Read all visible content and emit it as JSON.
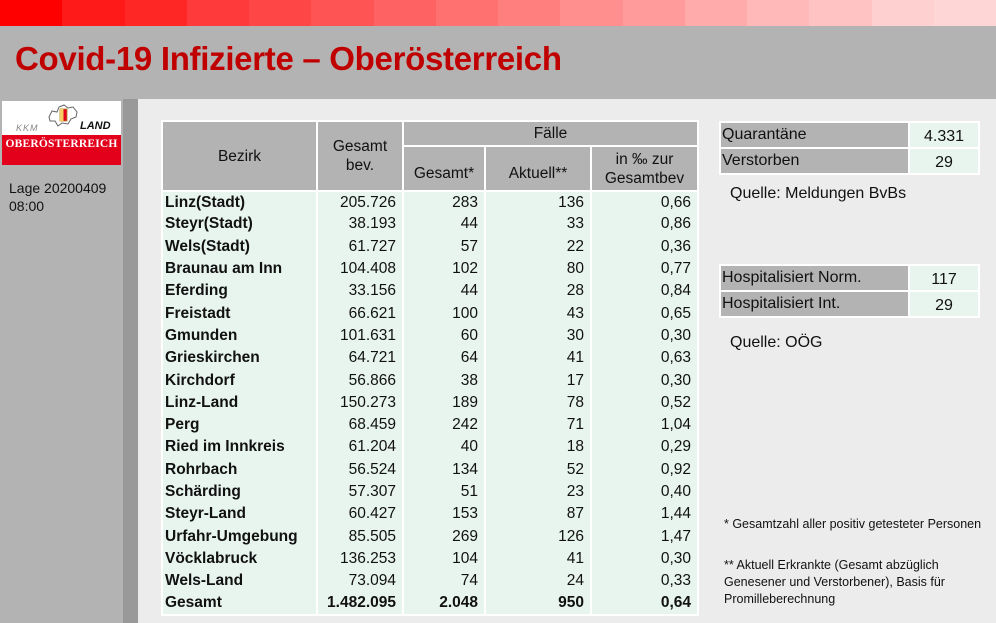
{
  "header": {
    "title": "Covid-19 Infizierte – Oberösterreich",
    "gradient_colors": [
      "#ff0000",
      "#ff1a1a",
      "#ff2626",
      "#ff3a3a",
      "#ff4646",
      "#ff5454",
      "#ff6262",
      "#ff7070",
      "#ff7e7e",
      "#ff8e8e",
      "#ff9b9b",
      "#ffabab",
      "#ffb9b9",
      "#ffc3c3",
      "#ffd0d0",
      "#ffd6d6"
    ]
  },
  "sidebar": {
    "logo": {
      "kkm": "KKM",
      "land": "LAND",
      "region": "OBERÖSTERREICH"
    },
    "lage_line1": "Lage 20200409",
    "lage_line2": "08:00"
  },
  "table": {
    "headers": {
      "bezirk": "Bezirk",
      "gesamt_bev_1": "Gesamt",
      "gesamt_bev_2": "bev.",
      "faelle": "Fälle",
      "gesamt": "Gesamt*",
      "aktuell": "Aktuell**",
      "promille_1": "in ‰ zur",
      "promille_2": "Gesamtbev"
    },
    "rows": [
      {
        "bezirk": "Linz(Stadt)",
        "bev": "205.726",
        "gesamt": "283",
        "aktuell": "136",
        "promille": "0,66"
      },
      {
        "bezirk": "Steyr(Stadt)",
        "bev": "38.193",
        "gesamt": "44",
        "aktuell": "33",
        "promille": "0,86"
      },
      {
        "bezirk": "Wels(Stadt)",
        "bev": "61.727",
        "gesamt": "57",
        "aktuell": "22",
        "promille": "0,36"
      },
      {
        "bezirk": "Braunau am Inn",
        "bev": "104.408",
        "gesamt": "102",
        "aktuell": "80",
        "promille": "0,77"
      },
      {
        "bezirk": "Eferding",
        "bev": "33.156",
        "gesamt": "44",
        "aktuell": "28",
        "promille": "0,84"
      },
      {
        "bezirk": "Freistadt",
        "bev": "66.621",
        "gesamt": "100",
        "aktuell": "43",
        "promille": "0,65"
      },
      {
        "bezirk": "Gmunden",
        "bev": "101.631",
        "gesamt": "60",
        "aktuell": "30",
        "promille": "0,30"
      },
      {
        "bezirk": "Grieskirchen",
        "bev": "64.721",
        "gesamt": "64",
        "aktuell": "41",
        "promille": "0,63"
      },
      {
        "bezirk": "Kirchdorf",
        "bev": "56.866",
        "gesamt": "38",
        "aktuell": "17",
        "promille": "0,30"
      },
      {
        "bezirk": "Linz-Land",
        "bev": "150.273",
        "gesamt": "189",
        "aktuell": "78",
        "promille": "0,52"
      },
      {
        "bezirk": "Perg",
        "bev": "68.459",
        "gesamt": "242",
        "aktuell": "71",
        "promille": "1,04"
      },
      {
        "bezirk": "Ried im Innkreis",
        "bev": "61.204",
        "gesamt": "40",
        "aktuell": "18",
        "promille": "0,29"
      },
      {
        "bezirk": "Rohrbach",
        "bev": "56.524",
        "gesamt": "134",
        "aktuell": "52",
        "promille": "0,92"
      },
      {
        "bezirk": "Schärding",
        "bev": "57.307",
        "gesamt": "51",
        "aktuell": "23",
        "promille": "0,40"
      },
      {
        "bezirk": "Steyr-Land",
        "bev": "60.427",
        "gesamt": "153",
        "aktuell": "87",
        "promille": "1,44"
      },
      {
        "bezirk": "Urfahr-Umgebung",
        "bev": "85.505",
        "gesamt": "269",
        "aktuell": "126",
        "promille": "1,47"
      },
      {
        "bezirk": "Vöcklabruck",
        "bev": "136.253",
        "gesamt": "104",
        "aktuell": "41",
        "promille": "0,30"
      },
      {
        "bezirk": "Wels-Land",
        "bev": "73.094",
        "gesamt": "74",
        "aktuell": "24",
        "promille": "0,33"
      }
    ],
    "total": {
      "bezirk": "Gesamt",
      "bev": "1.482.095",
      "gesamt": "2.048",
      "aktuell": "950",
      "promille": "0,64"
    }
  },
  "quarantine": {
    "rows": [
      {
        "label": "Quarantäne",
        "value": "4.331"
      },
      {
        "label": "Verstorben",
        "value": "29"
      }
    ],
    "source": "Quelle: Meldungen BvBs"
  },
  "hospital": {
    "rows": [
      {
        "label": "Hospitalisiert Norm.",
        "value": "117"
      },
      {
        "label": "Hospitalisiert Int.",
        "value": "29"
      }
    ],
    "source": "Quelle: OÖG"
  },
  "footnotes": {
    "one": "* Gesamtzahl aller positiv getesteter Personen",
    "two": "** Aktuell Erkrankte (Gesamt abzüglich Genesener und Verstorbener), Basis für Promilleberechnung"
  }
}
